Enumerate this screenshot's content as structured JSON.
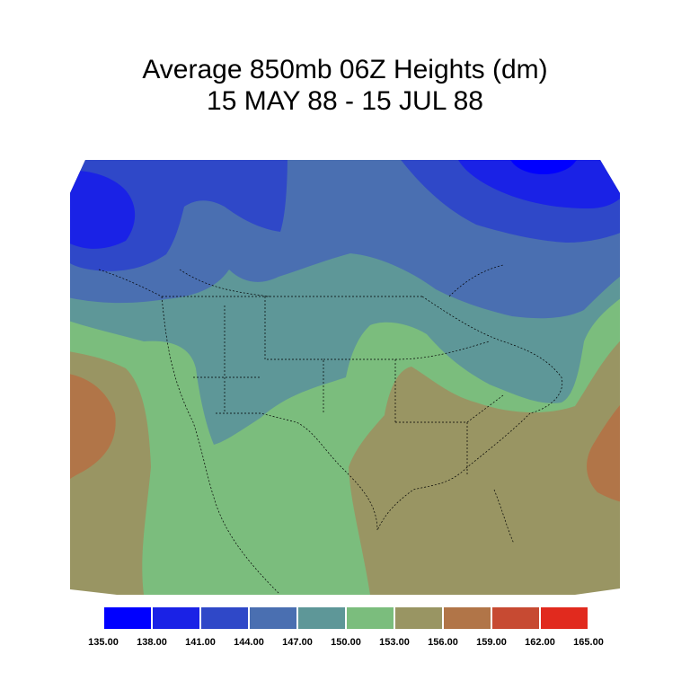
{
  "title": {
    "line1": "Average 850mb 06Z Heights (dm)",
    "line2": "15 MAY 88 - 15 JUL 88"
  },
  "colorbar": {
    "labels": [
      "135.00",
      "138.00",
      "141.00",
      "144.00",
      "147.00",
      "150.00",
      "153.00",
      "156.00",
      "159.00",
      "162.00",
      "165.00"
    ],
    "colors": [
      "#0000ff",
      "#1a22e6",
      "#2f48c8",
      "#4a6fb1",
      "#5e9798",
      "#7bbd7d",
      "#999563",
      "#b17548",
      "#c74a32",
      "#e12a1e"
    ]
  }
}
